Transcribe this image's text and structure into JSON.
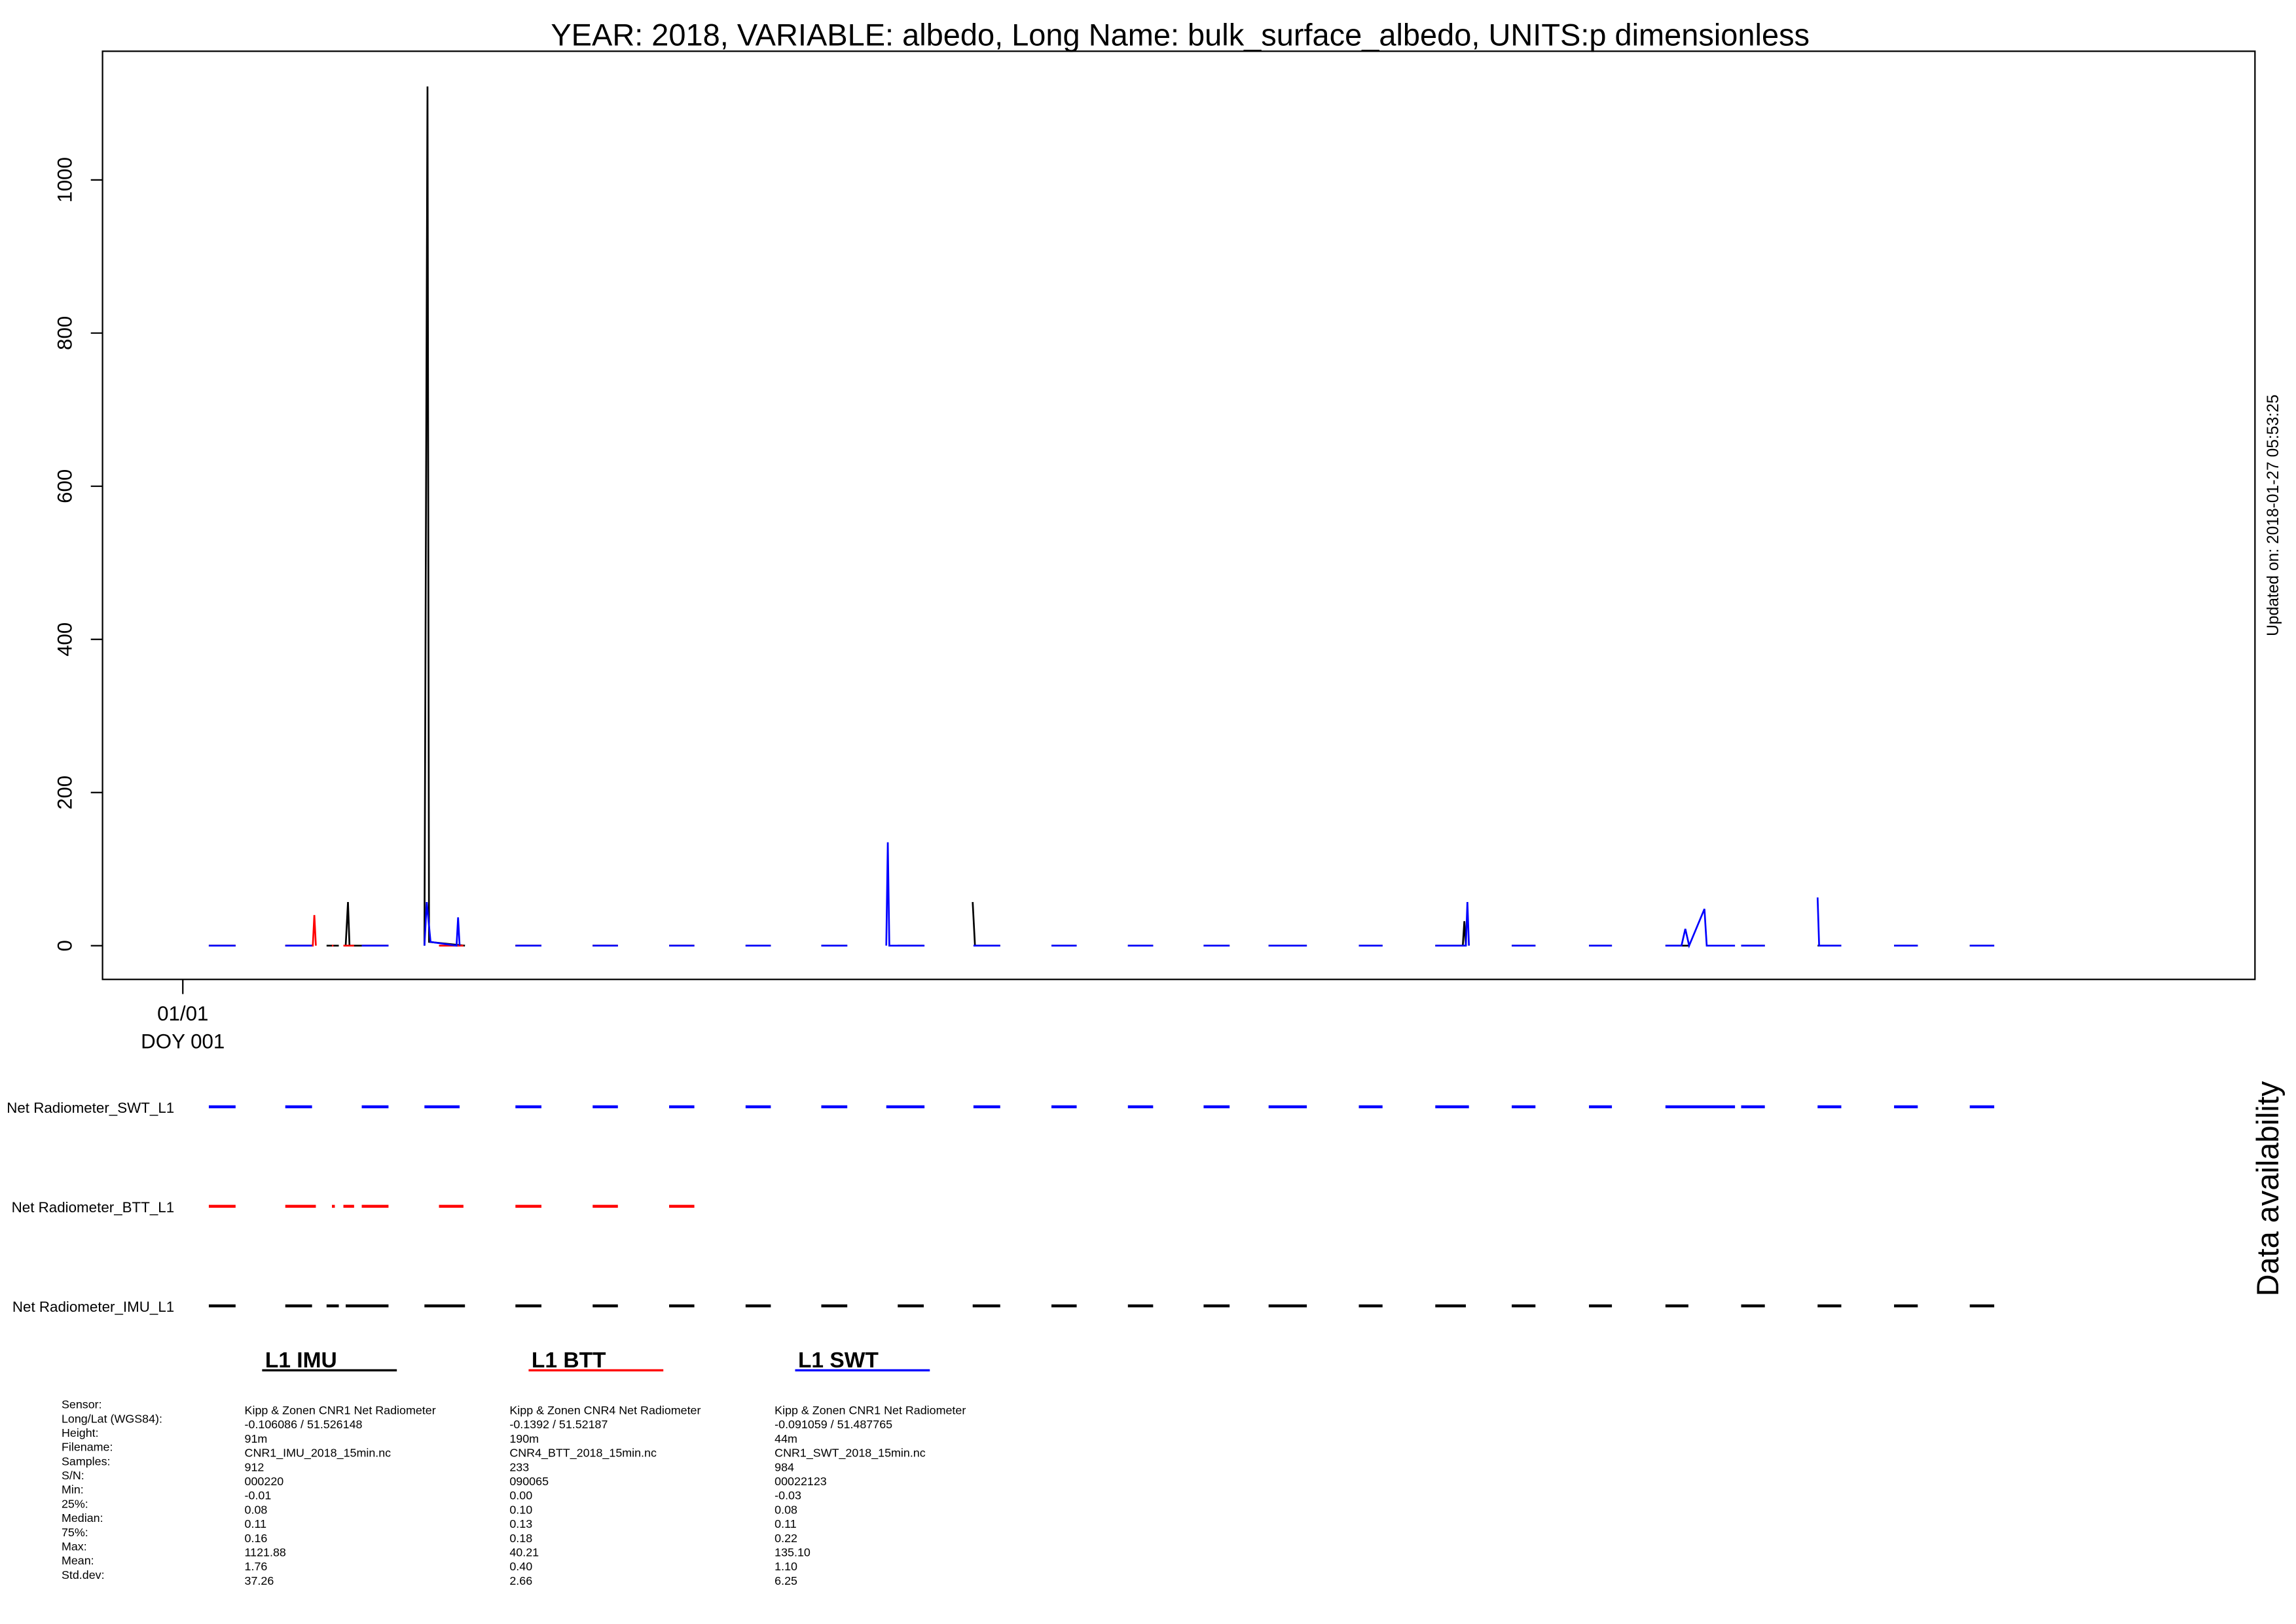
{
  "chart_data": {
    "type": "line",
    "title": "YEAR: 2018, VARIABLE: albedo, Long Name: bulk_surface_albedo, UNITS:p dimensionless",
    "side_note": "Updated on: 2018-01-27 05:53:25",
    "availability_title": "Data availability",
    "xlim": [
      -0.05,
      28.1
    ],
    "xticks": [
      {
        "value": 1,
        "label": "01/01\nDOY 001"
      }
    ],
    "ylim": [
      -44,
      1168
    ],
    "yticks": [
      0,
      200,
      400,
      600,
      800,
      1000
    ],
    "grid": false,
    "series": [
      {
        "name": "L1 IMU",
        "color": "#000000",
        "availability_label": "Net Radiometer_IMU_L1",
        "x": [
          1.34,
          1.69,
          null,
          2.34,
          2.69,
          null,
          2.88,
          3.04,
          null,
          3.13,
          3.16,
          3.18,
          3.69,
          null,
          4.16,
          4.2,
          4.22,
          4.69,
          null,
          5.35,
          5.69,
          null,
          6.36,
          6.69,
          null,
          7.36,
          7.69,
          null,
          8.36,
          8.69,
          null,
          9.35,
          9.69,
          null,
          10.35,
          10.69,
          null,
          11.33,
          11.36,
          11.69,
          null,
          12.36,
          12.69,
          null,
          13.36,
          13.69,
          null,
          14.35,
          14.69,
          null,
          15.2,
          15.7,
          null,
          16.38,
          16.69,
          null,
          17.38,
          17.74,
          17.76,
          17.78,
          null,
          18.38,
          18.69,
          null,
          19.39,
          19.69,
          null,
          20.39,
          20.69,
          null,
          21.38,
          21.69,
          null,
          22.38,
          22.69,
          null,
          23.38,
          23.69,
          null,
          24.37,
          24.69
        ],
        "values": [
          0.1,
          0.1,
          null,
          0.1,
          0.1,
          null,
          0.1,
          0.1,
          null,
          0.1,
          57,
          0.1,
          0.1,
          null,
          0.1,
          1122,
          5,
          0.1,
          null,
          0.1,
          0.1,
          null,
          0.1,
          0.1,
          null,
          0.1,
          0.1,
          null,
          0.1,
          0.1,
          null,
          0.1,
          0.1,
          null,
          0.1,
          0.1,
          null,
          57,
          0.1,
          0.1,
          null,
          0.1,
          0.1,
          null,
          0.1,
          0.1,
          null,
          0.1,
          0.1,
          null,
          0.1,
          0.1,
          null,
          0.1,
          0.1,
          null,
          0.1,
          0.1,
          32,
          0.1,
          null,
          0.1,
          0.1,
          null,
          0.1,
          0.1,
          null,
          0.1,
          0.1,
          null,
          0.1,
          0.1,
          null,
          0.1,
          0.1,
          null,
          0.1,
          0.1,
          null,
          0.1,
          0.1
        ]
      },
      {
        "name": "L1 BTT",
        "color": "#ff0000",
        "availability_label": "Net Radiometer_BTT_L1",
        "x": [
          1.34,
          1.69,
          null,
          2.34,
          2.7,
          2.72,
          2.74,
          null,
          2.95,
          2.97,
          null,
          3.1,
          3.24,
          null,
          3.34,
          3.69,
          null,
          4.35,
          4.67,
          null,
          5.35,
          5.69,
          null,
          6.36,
          6.69,
          null,
          7.36,
          7.69
        ],
        "values": [
          0.1,
          0.1,
          null,
          0.1,
          0.1,
          40,
          0.1,
          null,
          0.1,
          0.1,
          null,
          0.1,
          0.1,
          null,
          0.1,
          0.1,
          null,
          0.1,
          0.1,
          null,
          0.1,
          0.1,
          null,
          0.1,
          0.1,
          null,
          0.1,
          0.1
        ]
      },
      {
        "name": "L1 SWT",
        "color": "#0000ff",
        "availability_label": "Net Radiometer_SWT_L1",
        "x": [
          1.34,
          1.69,
          null,
          2.34,
          2.69,
          null,
          3.34,
          3.69,
          null,
          4.16,
          4.19,
          4.24,
          4.58,
          4.6,
          4.62,
          null,
          5.35,
          5.69,
          null,
          6.36,
          6.69,
          null,
          7.36,
          7.69,
          null,
          8.36,
          8.69,
          null,
          9.35,
          9.69,
          null,
          10.2,
          10.22,
          10.24,
          10.35,
          10.7,
          null,
          11.34,
          11.69,
          null,
          12.36,
          12.69,
          null,
          13.36,
          13.69,
          null,
          14.35,
          14.69,
          null,
          15.2,
          15.7,
          null,
          16.38,
          16.69,
          null,
          17.38,
          17.78,
          17.8,
          17.82,
          null,
          18.38,
          18.69,
          null,
          19.39,
          19.69,
          null,
          20.39,
          20.6,
          20.65,
          20.7,
          20.9,
          20.93,
          21.3,
          null,
          21.38,
          21.69,
          null,
          22.38,
          22.4,
          22.69,
          null,
          23.38,
          23.69,
          null,
          24.37,
          24.69
        ],
        "values": [
          0.1,
          0.1,
          null,
          0.1,
          0.1,
          null,
          0.1,
          0.1,
          null,
          0.1,
          57,
          5,
          0.1,
          37,
          0.1,
          null,
          0.1,
          0.1,
          null,
          0.1,
          0.1,
          null,
          0.1,
          0.1,
          null,
          0.1,
          0.1,
          null,
          0.1,
          0.1,
          null,
          0.1,
          135,
          0.1,
          0.1,
          0.1,
          null,
          0.1,
          0.1,
          null,
          0.1,
          0.1,
          null,
          0.1,
          0.1,
          null,
          0.1,
          0.1,
          null,
          0.1,
          0.1,
          null,
          0.1,
          0.1,
          null,
          0.1,
          0.1,
          57,
          0.1,
          null,
          0.1,
          0.1,
          null,
          0.1,
          0.1,
          null,
          0.1,
          0.1,
          22,
          0.1,
          48,
          0.1,
          0.1,
          null,
          0.1,
          0.1,
          null,
          63,
          0.1,
          0.1,
          null,
          0.1,
          0.1,
          null,
          0.1,
          0.1
        ]
      }
    ],
    "stats": {
      "labels": [
        "Sensor:",
        "Long/Lat (WGS84):",
        "Height:",
        "Filename:",
        "Samples:",
        "S/N:",
        "Min:",
        "25%:",
        "Median:",
        "75%:",
        "Max:",
        "Mean:",
        "Std.dev:"
      ],
      "columns": [
        [
          "Kipp & Zonen CNR1 Net Radiometer",
          " -0.106086 / 51.526148",
          "91m",
          "CNR1_IMU_2018_15min.nc",
          "912",
          "000220",
          "-0.01",
          "0.08",
          "0.11",
          "0.16",
          "1121.88",
          "1.76",
          "37.26"
        ],
        [
          "Kipp & Zonen CNR4 Net Radiometer",
          " -0.1392 / 51.52187",
          "190m",
          "CNR4_BTT_2018_15min.nc",
          "233",
          "090065",
          "0.00",
          "0.10",
          "0.13",
          "0.18",
          "40.21",
          "0.40",
          "2.66"
        ],
        [
          "Kipp & Zonen CNR1 Net Radiometer",
          " -0.091059 / 51.487765",
          "44m",
          "CNR1_SWT_2018_15min.nc",
          "984",
          "00022123",
          "-0.03",
          "0.08",
          "0.11",
          "0.22",
          "135.10",
          "1.10",
          "6.25"
        ]
      ]
    }
  }
}
